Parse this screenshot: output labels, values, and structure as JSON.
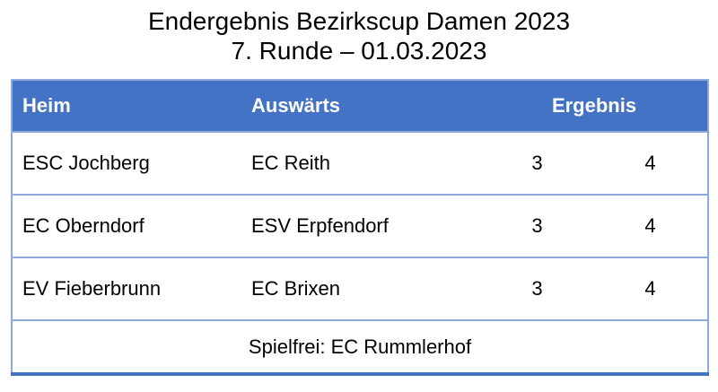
{
  "title": {
    "line1": "Endergebnis Bezirkscup Damen 2023",
    "line2": "7. Runde – 01.03.2023"
  },
  "colors": {
    "header_bg": "#4472C4",
    "header_text": "#FFFFFF",
    "row_border": "#8EAADB",
    "bottom_border": "#4472C4",
    "body_text": "#000000",
    "page_bg": "#FFFFFF"
  },
  "table": {
    "headers": {
      "home": "Heim",
      "away": "Auswärts",
      "result": "Ergebnis"
    },
    "rows": [
      {
        "home": "ESC Jochberg",
        "away": "EC Reith",
        "score_home": "3",
        "score_away": "4"
      },
      {
        "home": "EC Oberndorf",
        "away": "ESV Erpfendorf",
        "score_home": "3",
        "score_away": "4"
      },
      {
        "home": "EV Fieberbrunn",
        "away": "EC Brixen",
        "score_home": "3",
        "score_away": "4"
      }
    ],
    "footer": "Spielfrei: EC Rummlerhof"
  }
}
